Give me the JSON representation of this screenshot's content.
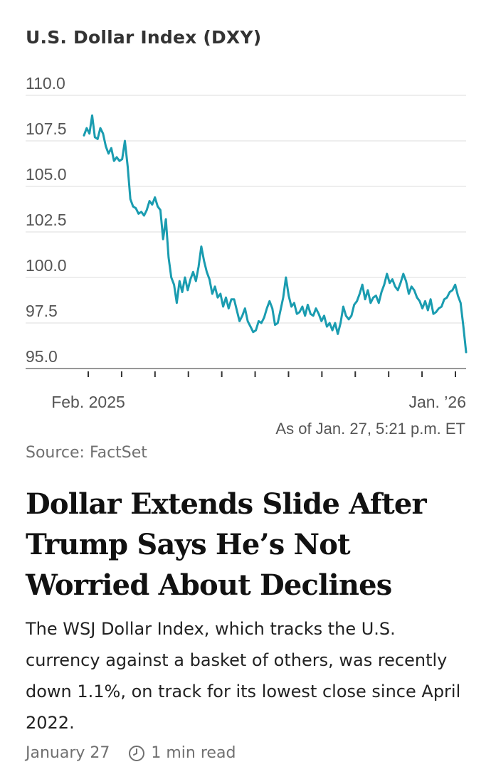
{
  "chart_data": {
    "type": "line",
    "title": "U.S. Dollar Index (DXY)",
    "ylim": [
      95.0,
      110.0
    ],
    "yticks": [
      "110.0",
      "107.5",
      "105.0",
      "102.5",
      "100.0",
      "97.5",
      "95.0"
    ],
    "xtick_labels": {
      "start": "Feb. 2025",
      "end": "Jan. ’26"
    },
    "grid": true,
    "line_color": "#1a9cb0",
    "series": [
      {
        "values": [
          107.8,
          108.2,
          107.9,
          108.9,
          107.7,
          107.6,
          108.2,
          107.9,
          107.2,
          106.8,
          107.1,
          106.4,
          106.6,
          106.4,
          106.5,
          107.5,
          106.1,
          104.3,
          103.9,
          103.8,
          103.5,
          103.6,
          103.4,
          103.7,
          104.2,
          104.0,
          104.4,
          103.9,
          103.7,
          102.1,
          103.2,
          101.1,
          100.0,
          99.6,
          98.6,
          99.8,
          99.2,
          100.0,
          99.3,
          99.9,
          100.3,
          99.8,
          100.6,
          101.7,
          100.9,
          100.3,
          99.9,
          99.1,
          99.5,
          98.9,
          99.1,
          98.4,
          98.9,
          98.3,
          98.8,
          98.8,
          98.2,
          97.6,
          97.9,
          98.3,
          97.6,
          97.3,
          97.0,
          97.1,
          97.6,
          97.5,
          97.8,
          98.3,
          98.7,
          98.3,
          97.4,
          97.5,
          98.2,
          98.9,
          100.0,
          99.0,
          98.4,
          98.6,
          98.0,
          98.1,
          98.4,
          97.9,
          98.5,
          98.0,
          97.9,
          98.3,
          98.0,
          97.6,
          97.9,
          97.3,
          97.5,
          97.1,
          97.5,
          96.9,
          97.5,
          98.4,
          97.9,
          97.7,
          97.9,
          98.5,
          98.7,
          99.1,
          99.6,
          98.8,
          99.3,
          98.6,
          98.9,
          99.0,
          98.6,
          99.2,
          99.6,
          100.2,
          99.7,
          99.9,
          99.5,
          99.3,
          99.7,
          100.2,
          99.8,
          99.1,
          99.5,
          99.3,
          98.9,
          98.7,
          98.3,
          98.7,
          98.2,
          98.8,
          98.0,
          98.1,
          98.3,
          98.4,
          98.8,
          98.9,
          99.2,
          99.3,
          99.6,
          99.0,
          98.6,
          97.3,
          95.9
        ]
      }
    ]
  },
  "as_of": "As of Jan. 27, 5:21 p.m. ET",
  "source": "Source: FactSet",
  "article": {
    "headline": "Dollar Extends Slide After Trump Says He’s Not Worried About Declines",
    "summary": "The WSJ Dollar Index, which tracks the U.S. currency against a basket of others, was recently down 1.1%, on track for its lowest close since April 2022.",
    "date": "January 27",
    "read_time": "1 min read"
  },
  "icons": {
    "read_time": "clock-icon"
  }
}
